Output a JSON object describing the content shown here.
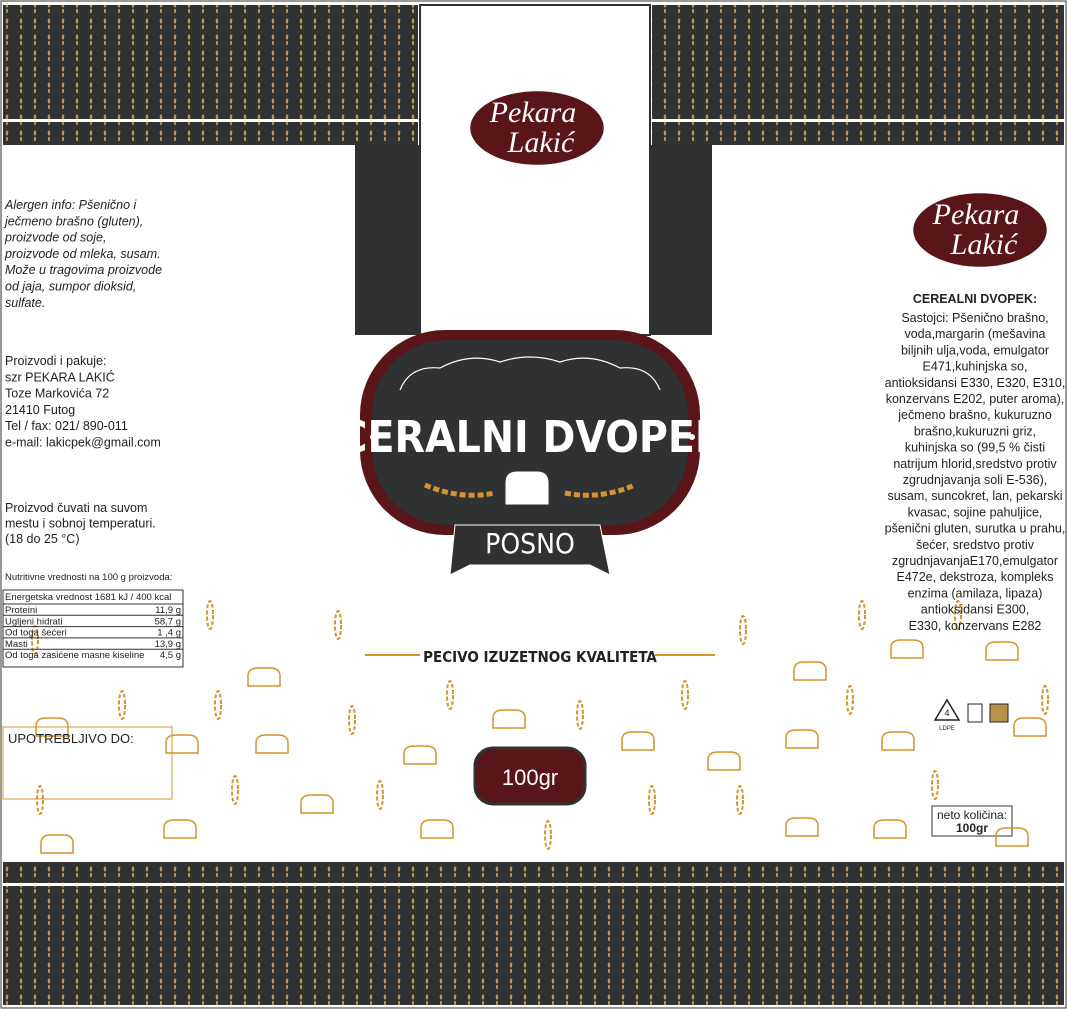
{
  "brand": {
    "line1": "Pekara",
    "line2": "Lakić"
  },
  "allergen": [
    "Alergen info: Pšenično i",
    "ječmeno brašno (gluten),",
    "proizvode od soje,",
    "proizvode od mleka, susam.",
    "Može u tragovima proizvode",
    "od jaja, sumpor dioksid,",
    "sulfate."
  ],
  "producer": [
    "Proizvodi i pakuje:",
    "szr PEKARA LAKIĆ",
    "Toze Markovića 72",
    "21410 Futog",
    "Tel / fax: 021/ 890-011",
    "e-mail: lakicpek@gmail.com"
  ],
  "storage": [
    "Proizvod čuvati na suvom",
    "mestu i sobnoj temperaturi.",
    "(18 do 25 °C)"
  ],
  "nutrition": {
    "title": "Nutritivne vrednosti na 100 g proizvoda:",
    "energy": "Energetska vrednost 1681 kJ / 400 kcal",
    "rows": [
      [
        "Proteini",
        "11,9 g"
      ],
      [
        "Ugljeni hidrati",
        "58,7 g"
      ],
      [
        "Od toga šećeri",
        "1 ,4 g"
      ],
      [
        "Masti",
        "13,9 g"
      ],
      [
        "Od toga zasićene masne kiseline",
        "4,5 g"
      ]
    ]
  },
  "best_before": "UPOTREBLJIVO DO:",
  "product": {
    "name": "CERALNI DVOPEK",
    "variant": "POSNO",
    "tagline": "PECIVO IZUZETNOG KVALITETA",
    "weight": "100gr"
  },
  "ingredients": {
    "title": "CEREALNI DVOPEK:",
    "lines": [
      "Sastojci: Pšenično brašno,",
      "voda,margarin (mešavina",
      "biljnih ulja,voda, emulgator",
      "E471,kuhinjska so,",
      "antioksidansi E330, E320, E310,",
      "konzervans E202, puter aroma),",
      "ječmeno brašno, kukuruzno",
      "brašno,kukuruzni griz,",
      "kuhinjska so (99,5 % čisti",
      "natrijum hlorid,sredstvo protiv",
      "zgrudnjavanja soli E-536),",
      "susam, suncokret, lan, pekarski",
      "kvasac, sojine pahuljice,",
      "pšenični gluten, surutka u prahu,",
      "šećer, sredstvo protiv",
      "zgrudnjavanjaE170,emulgator",
      "E472e, dekstroza, kompleks",
      "enzima (amilaza, lipaza)",
      "antioksidansi E300,",
      "E330, konzervans E282"
    ]
  },
  "recycling": {
    "code": "4",
    "material": "LDPE"
  },
  "net": {
    "label": "neto količina:",
    "value": "100gr"
  }
}
